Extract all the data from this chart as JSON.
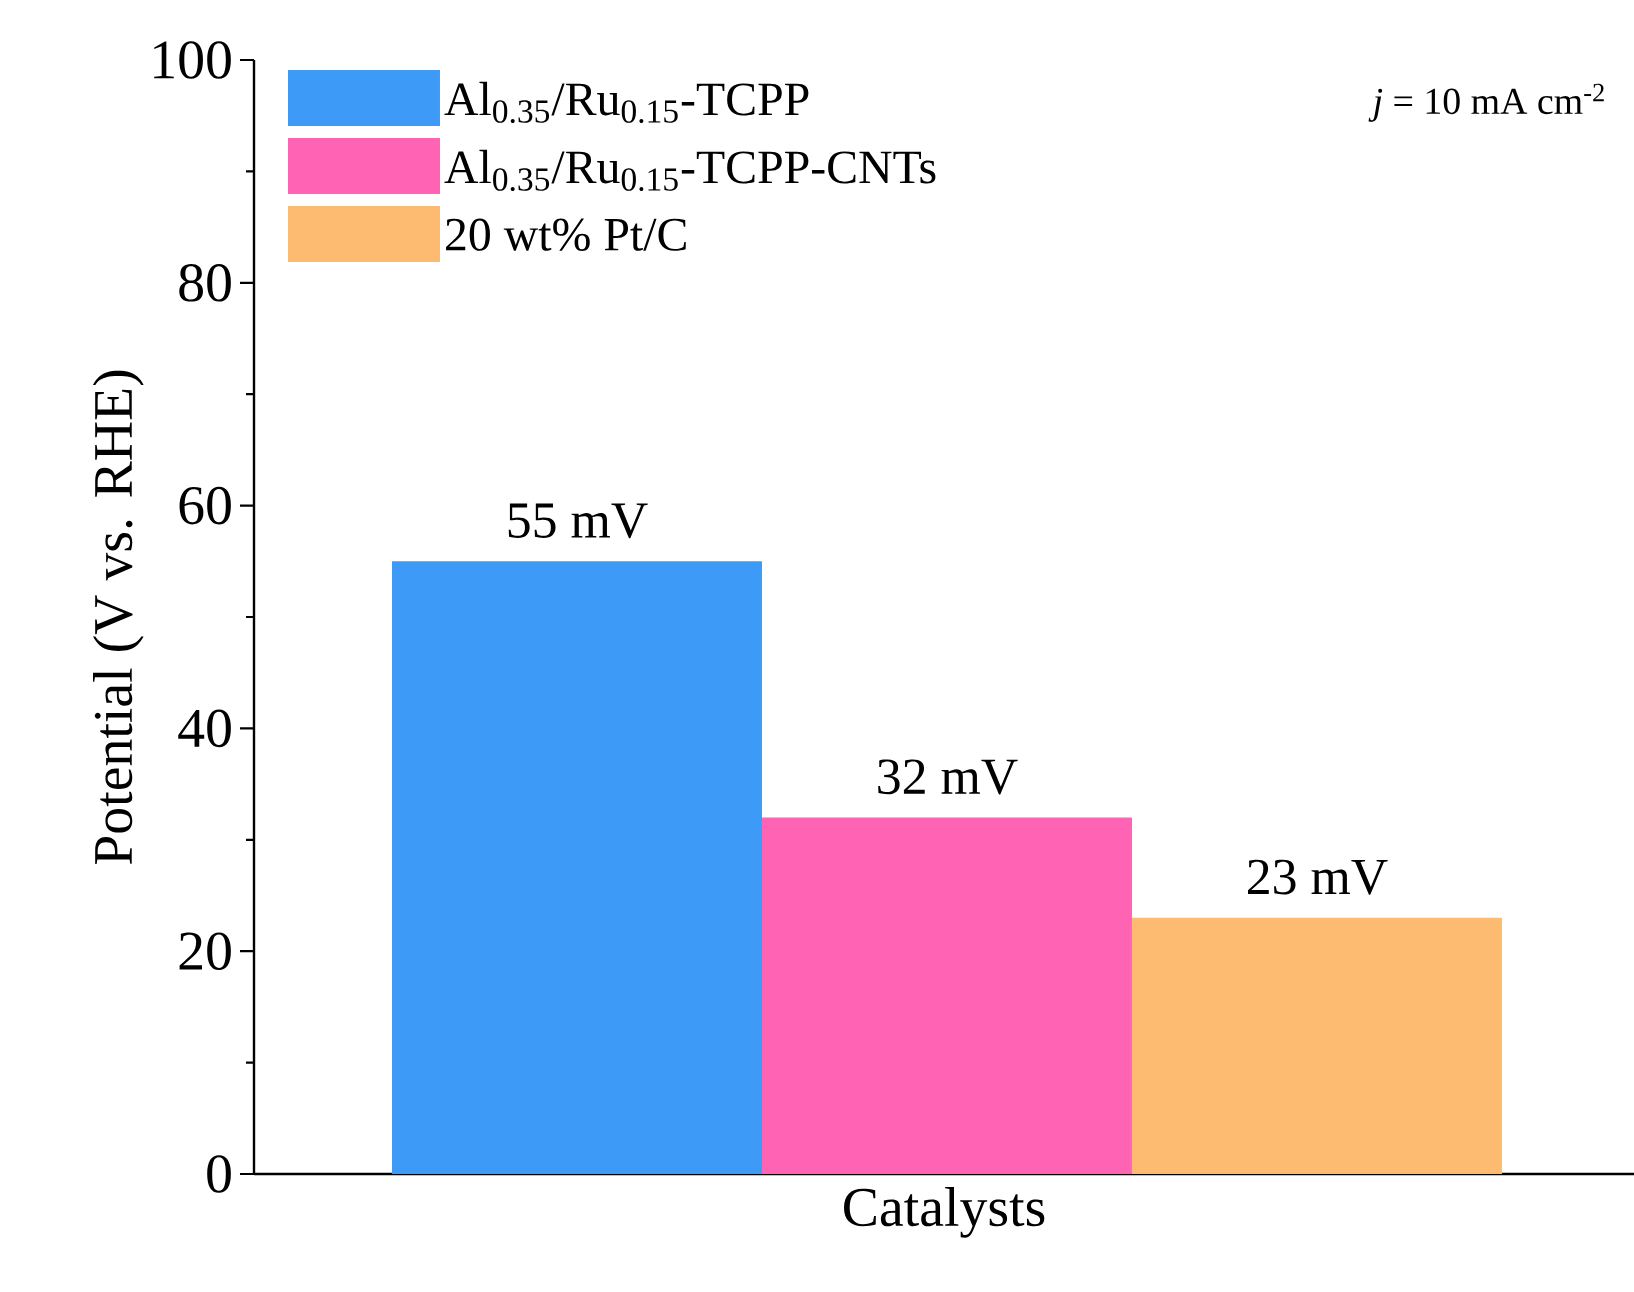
{
  "chart_data": {
    "type": "bar",
    "ylabel": "Potential (V vs. RHE)",
    "xlabel": "Catalysts",
    "categories": [
      null,
      null,
      null
    ],
    "series": [
      {
        "name": "Al$_{0.35}$/Ru$_{0.15}$-TCPP",
        "color": "#3d9bf7",
        "values": [
          55,
          null,
          null
        ],
        "value_labels": [
          "55 mV",
          null,
          null
        ]
      },
      {
        "name": "Al$_{0.35}$/Ru$_{0.15}$-TCPP-CNTs",
        "color": "#fe63b4",
        "values": [
          null,
          32,
          null
        ],
        "value_labels": [
          null,
          "32 mV",
          null
        ]
      },
      {
        "name": "20 wt% Pt/C",
        "color": "#fdbb72",
        "values": [
          null,
          null,
          23
        ],
        "value_labels": [
          null,
          null,
          "23 mV"
        ]
      }
    ],
    "ylim": [
      0,
      100
    ],
    "yticks": [
      0,
      20,
      40,
      60,
      80,
      100
    ],
    "legend": "top left",
    "tick_labels": "y",
    "annotations": [
      "*j* = 10 mA cm$^{-2}$"
    ]
  }
}
